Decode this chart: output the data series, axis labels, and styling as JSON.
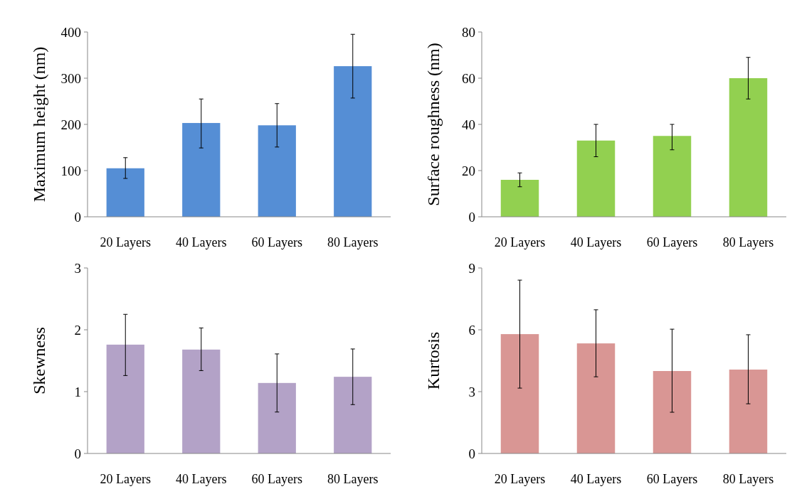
{
  "chart_data": [
    {
      "type": "bar",
      "ylabel": "Maximum height (nm)",
      "categories": [
        "20 Layers",
        "40 Layers",
        "60 Layers",
        "80 Layers"
      ],
      "values": [
        105,
        203,
        198,
        326
      ],
      "errors": [
        [
          83,
          128
        ],
        [
          149,
          255
        ],
        [
          151,
          245
        ],
        [
          257,
          395
        ]
      ],
      "color": "#558ed5",
      "ylim": [
        0,
        400
      ],
      "yticks": [
        0,
        100,
        200,
        300,
        400
      ]
    },
    {
      "type": "bar",
      "ylabel": "Surface roughness (nm)",
      "categories": [
        "20 Layers",
        "40 Layers",
        "60 Layers",
        "80 Layers"
      ],
      "values": [
        16,
        33,
        35,
        60
      ],
      "errors": [
        [
          13,
          19
        ],
        [
          26,
          40
        ],
        [
          29,
          40
        ],
        [
          51,
          69
        ]
      ],
      "color": "#92d050",
      "ylim": [
        0,
        80
      ],
      "yticks": [
        0,
        20,
        40,
        60,
        80
      ]
    },
    {
      "type": "bar",
      "ylabel": "Skewness",
      "categories": [
        "20 Layers",
        "40 Layers",
        "60 Layers",
        "80 Layers"
      ],
      "values": [
        1.76,
        1.68,
        1.14,
        1.24
      ],
      "errors": [
        [
          1.26,
          2.25
        ],
        [
          1.34,
          2.03
        ],
        [
          0.67,
          1.61
        ],
        [
          0.79,
          1.69
        ]
      ],
      "color": "#b3a2c7",
      "ylim": [
        0,
        3
      ],
      "yticks": [
        0,
        1,
        2,
        3
      ]
    },
    {
      "type": "bar",
      "ylabel": "Kurtosis",
      "categories": [
        "20 Layers",
        "40 Layers",
        "60 Layers",
        "80 Layers"
      ],
      "values": [
        5.79,
        5.34,
        4.0,
        4.07
      ],
      "errors": [
        [
          3.17,
          8.41
        ],
        [
          3.72,
          6.97
        ],
        [
          2.0,
          6.03
        ],
        [
          2.41,
          5.76
        ]
      ],
      "color": "#d99694",
      "ylim": [
        0,
        9
      ],
      "yticks": [
        0,
        3,
        6,
        9
      ]
    }
  ]
}
